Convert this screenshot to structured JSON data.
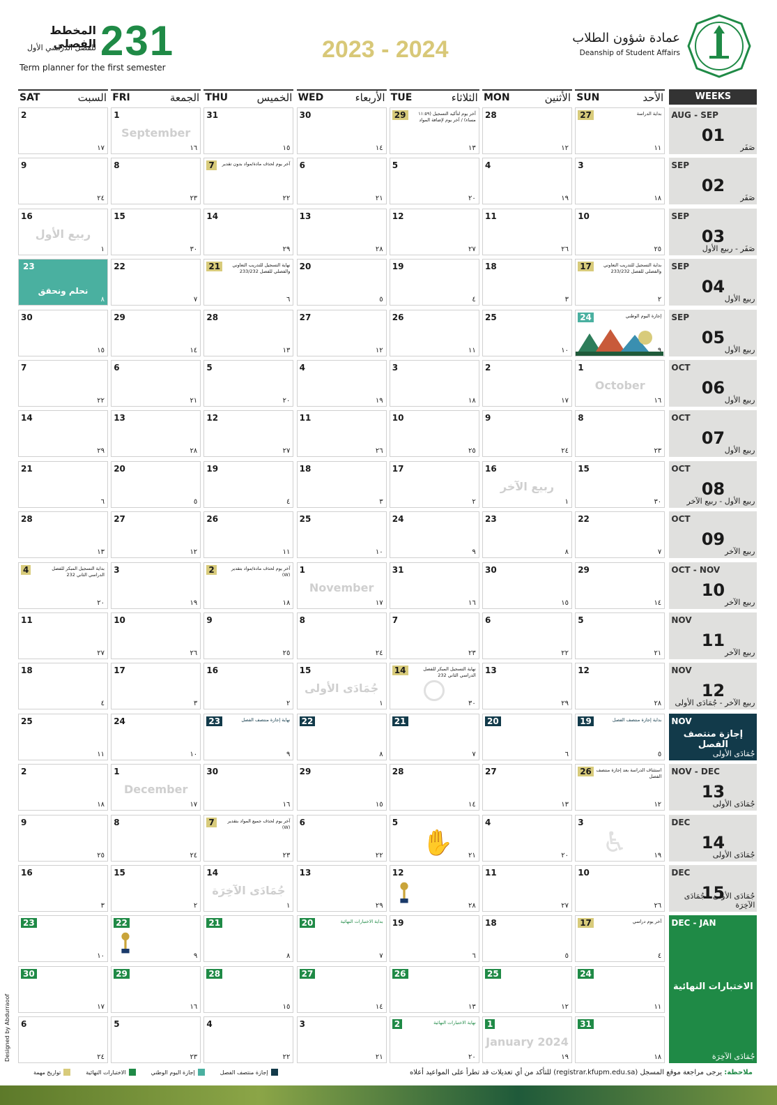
{
  "header": {
    "term_number": "231",
    "title_ar": "المخطط الفصلي",
    "subtitle_ar": "للفصل الدراسي الأول",
    "subtitle_en": "Term planner for the first semester",
    "year": "2023 - 2024",
    "dept_ar": "عمادة شؤون الطلاب",
    "dept_en": "Deanship of Student Affairs"
  },
  "days": [
    {
      "en": "SAT",
      "ar": "السبت"
    },
    {
      "en": "FRI",
      "ar": "الجمعة"
    },
    {
      "en": "THU",
      "ar": "الخميس"
    },
    {
      "en": "WED",
      "ar": "الأربعاء"
    },
    {
      "en": "TUE",
      "ar": "الثلاثاء"
    },
    {
      "en": "MON",
      "ar": "الأثنين"
    },
    {
      "en": "SUN",
      "ar": "الأحد"
    }
  ],
  "weeks_label": "WEEKS",
  "weeks": [
    {
      "month": "AUG - SEP",
      "num": "01",
      "hijri": "صَفَر"
    },
    {
      "month": "SEP",
      "num": "02",
      "hijri": "صَفَر"
    },
    {
      "month": "SEP",
      "num": "03",
      "hijri": "صَفَر - ربيع الأول"
    },
    {
      "month": "SEP",
      "num": "04",
      "hijri": "ربيع الأول"
    },
    {
      "month": "SEP",
      "num": "05",
      "hijri": "ربيع الأول"
    },
    {
      "month": "OCT",
      "num": "06",
      "hijri": "ربيع الأول"
    },
    {
      "month": "OCT",
      "num": "07",
      "hijri": "ربيع الأول"
    },
    {
      "month": "OCT",
      "num": "08",
      "hijri": "ربيع الأول - ربيع الآخر"
    },
    {
      "month": "OCT",
      "num": "09",
      "hijri": "ربيع الآخر"
    },
    {
      "month": "OCT - NOV",
      "num": "10",
      "hijri": "ربيع الآخر"
    },
    {
      "month": "NOV",
      "num": "11",
      "hijri": "ربيع الآخر"
    },
    {
      "month": "NOV",
      "num": "12",
      "hijri": "ربيع الآخر - جُمَادَى الأولى"
    },
    {
      "month": "NOV",
      "num": "",
      "hijri": "جُمَادَى الأولى",
      "label": "إجازة منتصف الفصل",
      "style": "navy"
    },
    {
      "month": "NOV - DEC",
      "num": "13",
      "hijri": "جُمَادَى الأولى"
    },
    {
      "month": "DEC",
      "num": "14",
      "hijri": "جُمَادَى الأولى"
    },
    {
      "month": "DEC",
      "num": "15",
      "hijri": "جُمَادَى الأولى - جُمَادَى الآخِرَة"
    },
    {
      "month": "DEC - JAN",
      "num": "",
      "hijri": "جُمَادَى الآخِرَة",
      "label": "الاختبارات النهائية",
      "style": "green",
      "span": 3
    }
  ],
  "rows": [
    [
      {
        "g": "2",
        "h": "١٧"
      },
      {
        "g": "1",
        "h": "١٦",
        "month": "September"
      },
      {
        "g": "31",
        "h": "١٥"
      },
      {
        "g": "30",
        "h": "١٤"
      },
      {
        "g": "29",
        "h": "١٣",
        "hl": "y",
        "note": "آخر يوم لتأكيد التسجيل (١١:٥٩ مساء) / آخر يوم لإضافة المواد"
      },
      {
        "g": "28",
        "h": "١٢"
      },
      {
        "g": "27",
        "h": "١١",
        "hl": "y",
        "note": "بداية الدراسة"
      }
    ],
    [
      {
        "g": "9",
        "h": "٢٤"
      },
      {
        "g": "8",
        "h": "٢٣"
      },
      {
        "g": "7",
        "h": "٢٢",
        "hl": "y",
        "note": "آخر يوم لحذف مادة/مواد بدون تقدير"
      },
      {
        "g": "6",
        "h": "٢١"
      },
      {
        "g": "5",
        "h": "٢٠"
      },
      {
        "g": "4",
        "h": "١٩"
      },
      {
        "g": "3",
        "h": "١٨"
      }
    ],
    [
      {
        "g": "16",
        "h": "١",
        "month": "ربيع الأول"
      },
      {
        "g": "15",
        "h": "٣٠"
      },
      {
        "g": "14",
        "h": "٢٩"
      },
      {
        "g": "13",
        "h": "٢٨"
      },
      {
        "g": "12",
        "h": "٢٧"
      },
      {
        "g": "11",
        "h": "٢٦"
      },
      {
        "g": "10",
        "h": "٢٥"
      }
    ],
    [
      {
        "g": "23",
        "h": "٨",
        "hl": "t",
        "teal": true,
        "teal_text": "نحلم ونحقق"
      },
      {
        "g": "22",
        "h": "٧"
      },
      {
        "g": "21",
        "h": "٦",
        "hl": "y",
        "note": "نهاية التسجيل للتدريب التعاوني والفصلي للفصل 233/232"
      },
      {
        "g": "20",
        "h": "٥"
      },
      {
        "g": "19",
        "h": "٤"
      },
      {
        "g": "18",
        "h": "٣"
      },
      {
        "g": "17",
        "h": "٢",
        "hl": "y",
        "note": "بداية التسجيل للتدريب التعاوني والفصلي للفصل 233/232"
      }
    ],
    [
      {
        "g": "30",
        "h": "١٥"
      },
      {
        "g": "29",
        "h": "١٤"
      },
      {
        "g": "28",
        "h": "١٣"
      },
      {
        "g": "27",
        "h": "١٢"
      },
      {
        "g": "26",
        "h": "١١"
      },
      {
        "g": "25",
        "h": "١٠"
      },
      {
        "g": "24",
        "h": "٩",
        "hl": "t",
        "note": "إجازة اليوم الوطني",
        "art": true
      }
    ],
    [
      {
        "g": "7",
        "h": "٢٢"
      },
      {
        "g": "6",
        "h": "٢١"
      },
      {
        "g": "5",
        "h": "٢٠"
      },
      {
        "g": "4",
        "h": "١٩"
      },
      {
        "g": "3",
        "h": "١٨"
      },
      {
        "g": "2",
        "h": "١٧"
      },
      {
        "g": "1",
        "h": "١٦",
        "month": "October"
      }
    ],
    [
      {
        "g": "14",
        "h": "٢٩"
      },
      {
        "g": "13",
        "h": "٢٨"
      },
      {
        "g": "12",
        "h": "٢٧"
      },
      {
        "g": "11",
        "h": "٢٦"
      },
      {
        "g": "10",
        "h": "٢٥"
      },
      {
        "g": "9",
        "h": "٢٤"
      },
      {
        "g": "8",
        "h": "٢٣"
      }
    ],
    [
      {
        "g": "21",
        "h": "٦"
      },
      {
        "g": "20",
        "h": "٥"
      },
      {
        "g": "19",
        "h": "٤"
      },
      {
        "g": "18",
        "h": "٣"
      },
      {
        "g": "17",
        "h": "٢"
      },
      {
        "g": "16",
        "h": "١",
        "month": "ربيع الآخر"
      },
      {
        "g": "15",
        "h": "٣٠"
      }
    ],
    [
      {
        "g": "28",
        "h": "١٣"
      },
      {
        "g": "27",
        "h": "١٢"
      },
      {
        "g": "26",
        "h": "١١"
      },
      {
        "g": "25",
        "h": "١٠"
      },
      {
        "g": "24",
        "h": "٩"
      },
      {
        "g": "23",
        "h": "٨"
      },
      {
        "g": "22",
        "h": "٧"
      }
    ],
    [
      {
        "g": "4",
        "h": "٢٠",
        "hl": "y",
        "note": "بداية التسجيل المبكر للفصل الدراسي الثاني 232"
      },
      {
        "g": "3",
        "h": "١٩"
      },
      {
        "g": "2",
        "h": "١٨",
        "hl": "y",
        "note": "آخر يوم لحذف مادة/مواد بتقدير (W)"
      },
      {
        "g": "1",
        "h": "١٧",
        "month": "November"
      },
      {
        "g": "31",
        "h": "١٦"
      },
      {
        "g": "30",
        "h": "١٥"
      },
      {
        "g": "29",
        "h": "١٤"
      }
    ],
    [
      {
        "g": "11",
        "h": "٢٧"
      },
      {
        "g": "10",
        "h": "٢٦"
      },
      {
        "g": "9",
        "h": "٢٥"
      },
      {
        "g": "8",
        "h": "٢٤"
      },
      {
        "g": "7",
        "h": "٢٣"
      },
      {
        "g": "6",
        "h": "٢٢"
      },
      {
        "g": "5",
        "h": "٢١"
      }
    ],
    [
      {
        "g": "18",
        "h": "٤"
      },
      {
        "g": "17",
        "h": "٣"
      },
      {
        "g": "16",
        "h": "٢"
      },
      {
        "g": "15",
        "h": "١",
        "month": "جُمَادَى الأولى"
      },
      {
        "g": "14",
        "h": "٣٠",
        "hl": "y",
        "note": "نهاية التسجيل المبكر للفصل الدراسي الثاني 232",
        "circle": true
      },
      {
        "g": "13",
        "h": "٢٩"
      },
      {
        "g": "12",
        "h": "٢٨"
      }
    ],
    [
      {
        "g": "25",
        "h": "١١"
      },
      {
        "g": "24",
        "h": "١٠"
      },
      {
        "g": "23",
        "h": "٩",
        "hl": "n",
        "note": "نهاية إجازة منتصف الفصل",
        "nc": "navy"
      },
      {
        "g": "22",
        "h": "٨",
        "hl": "n"
      },
      {
        "g": "21",
        "h": "٧",
        "hl": "n"
      },
      {
        "g": "20",
        "h": "٦",
        "hl": "n"
      },
      {
        "g": "19",
        "h": "٥",
        "hl": "n",
        "note": "بداية إجازة منتصف الفصل",
        "nc": "navy"
      }
    ],
    [
      {
        "g": "2",
        "h": "١٨"
      },
      {
        "g": "1",
        "h": "١٧",
        "month": "December"
      },
      {
        "g": "30",
        "h": "١٦"
      },
      {
        "g": "29",
        "h": "١٥"
      },
      {
        "g": "28",
        "h": "١٤"
      },
      {
        "g": "27",
        "h": "١٣"
      },
      {
        "g": "26",
        "h": "١٢",
        "hl": "y",
        "note": "استئناف الدراسة بعد إجازة منتصف الفصل"
      }
    ],
    [
      {
        "g": "9",
        "h": "٢٥"
      },
      {
        "g": "8",
        "h": "٢٤"
      },
      {
        "g": "7",
        "h": "٢٣",
        "hl": "y",
        "note": "آخر يوم لحذف جميع المواد بتقدير (W)"
      },
      {
        "g": "6",
        "h": "٢٢"
      },
      {
        "g": "5",
        "h": "٢١",
        "hands": true
      },
      {
        "g": "4",
        "h": "٢٠"
      },
      {
        "g": "3",
        "h": "١٩",
        "wheel": true
      }
    ],
    [
      {
        "g": "16",
        "h": "٣"
      },
      {
        "g": "15",
        "h": "٢"
      },
      {
        "g": "14",
        "h": "١",
        "month": "جُمَادَى الآخِرَة"
      },
      {
        "g": "13",
        "h": "٢٩"
      },
      {
        "g": "12",
        "h": "٢٨",
        "trophy": true
      },
      {
        "g": "11",
        "h": "٢٧"
      },
      {
        "g": "10",
        "h": "٢٦"
      }
    ],
    [
      {
        "g": "23",
        "h": "١٠",
        "hl": "g"
      },
      {
        "g": "22",
        "h": "٩",
        "hl": "g",
        "trophy": true
      },
      {
        "g": "21",
        "h": "٨",
        "hl": "g"
      },
      {
        "g": "20",
        "h": "٧",
        "hl": "g",
        "note": "بداية الاختبارات النهائية",
        "nc": "green"
      },
      {
        "g": "19",
        "h": "٦"
      },
      {
        "g": "18",
        "h": "٥"
      },
      {
        "g": "17",
        "h": "٤",
        "hl": "y",
        "note": "آخر يوم دراسي"
      }
    ],
    [
      {
        "g": "30",
        "h": "١٧",
        "hl": "g"
      },
      {
        "g": "29",
        "h": "١٦",
        "hl": "g"
      },
      {
        "g": "28",
        "h": "١٥",
        "hl": "g"
      },
      {
        "g": "27",
        "h": "١٤",
        "hl": "g"
      },
      {
        "g": "26",
        "h": "١٣",
        "hl": "g"
      },
      {
        "g": "25",
        "h": "١٢",
        "hl": "g"
      },
      {
        "g": "24",
        "h": "١١",
        "hl": "g"
      }
    ],
    [
      {
        "g": "6",
        "h": "٢٤"
      },
      {
        "g": "5",
        "h": "٢٣"
      },
      {
        "g": "4",
        "h": "٢٢"
      },
      {
        "g": "3",
        "h": "٢١"
      },
      {
        "g": "2",
        "h": "٢٠",
        "hl": "g",
        "note": "نهاية الاختبارات النهائية",
        "nc": "green"
      },
      {
        "g": "1",
        "h": "١٩",
        "hl": "g",
        "month": "January 2024"
      },
      {
        "g": "31",
        "h": "١٨",
        "hl": "g"
      }
    ]
  ],
  "footer": {
    "note_label": "ملاحظة:",
    "note": "يرجى مراجعة موقع المسجل (registrar.kfupm.edu.sa) للتأكد من أي تعديلات قد تطرأ على المواعيد أعلاه",
    "legend": [
      {
        "label": "إجازة منتصف الفصل",
        "color": "#123a4a"
      },
      {
        "label": "إجازة اليوم الوطني",
        "color": "#4ab0a0"
      },
      {
        "label": "الاختبارات النهائية",
        "color": "#1f8a46"
      },
      {
        "label": "تواريخ مهمة",
        "color": "#d8cb7b"
      }
    ],
    "designed": "Designed by Abdurraoof"
  },
  "colors": {
    "green": "#1f8a46",
    "navy": "#123a4a",
    "yellow": "#d8cb7b",
    "teal": "#4ab0a0",
    "gold": "#d8c878"
  }
}
